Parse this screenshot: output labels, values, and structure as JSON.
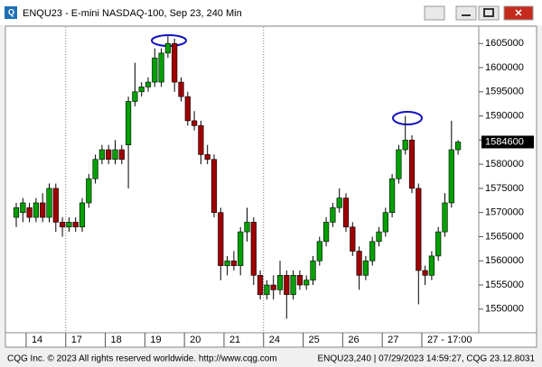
{
  "window": {
    "title": "ENQU23 - E-mini NASDAQ-100, Sep 23, 240 Min",
    "footer_left": "CQG Inc. © 2023 All rights reserved worldwide. http://www.cqg.com",
    "footer_right": "ENQU23,240 | 07/29/2023 14:59:27, CQG 23.12.8031"
  },
  "chart_data": {
    "type": "candlestick",
    "categories": [
      null,
      null,
      "14",
      null,
      null,
      null,
      null,
      null,
      "17",
      null,
      null,
      null,
      null,
      null,
      "18",
      null,
      null,
      null,
      null,
      null,
      "19",
      null,
      null,
      null,
      null,
      null,
      "20",
      null,
      null,
      null,
      null,
      null,
      "21",
      null,
      null,
      null,
      null,
      null,
      "24",
      null,
      null,
      null,
      null,
      null,
      "25",
      null,
      null,
      null,
      null,
      null,
      "26",
      null,
      null,
      null,
      null,
      null,
      "27",
      null,
      null,
      null,
      null,
      null,
      "27 - 17:00",
      null,
      null,
      null,
      null,
      null
    ],
    "open": [
      1569000,
      1570000,
      1571000,
      1569000,
      1572000,
      1569000,
      1575000,
      1568000,
      1567000,
      1568000,
      1567000,
      1572000,
      1577000,
      1581000,
      1583000,
      1581000,
      1583000,
      1584000,
      1593000,
      1595000,
      1596000,
      1597000,
      1597000,
      1603000,
      1605000,
      1597000,
      1594000,
      1589000,
      1588000,
      1582000,
      1581000,
      1570000,
      1559000,
      1560000,
      1559000,
      1566000,
      1568000,
      1557000,
      1553000,
      1555000,
      1554000,
      1557000,
      1553000,
      1557000,
      1555000,
      1556000,
      1560000,
      1564000,
      1568000,
      1571000,
      1573000,
      1567000,
      1562000,
      1557000,
      1560000,
      1564000,
      1566000,
      1570000,
      1577000,
      1583000,
      1585000,
      1575000,
      1558000,
      1557000,
      1561000,
      1566000,
      1572000,
      1583000
    ],
    "high": [
      1572000,
      1573000,
      1572000,
      1573000,
      1574000,
      1576000,
      1576000,
      1569000,
      1569000,
      1569000,
      1573000,
      1578000,
      1582000,
      1584000,
      1584000,
      1585000,
      1584000,
      1594000,
      1601000,
      1597000,
      1598000,
      1604000,
      1604000,
      1606500,
      1606000,
      1598000,
      1595000,
      1591000,
      1589000,
      1584000,
      1582000,
      1571000,
      1561000,
      1562000,
      1567000,
      1571000,
      1569000,
      1558000,
      1556000,
      1557000,
      1560000,
      1558000,
      1558000,
      1558000,
      1557000,
      1561000,
      1565000,
      1569000,
      1572000,
      1575000,
      1574000,
      1568000,
      1563000,
      1561000,
      1565000,
      1567000,
      1571000,
      1578000,
      1584000,
      1590000,
      1586000,
      1576000,
      1559000,
      1562000,
      1567000,
      1574000,
      1589000,
      1585000
    ],
    "low": [
      1567000,
      1568000,
      1568000,
      1568000,
      1568000,
      1568000,
      1566000,
      1565000,
      1566000,
      1566000,
      1566000,
      1571000,
      1576000,
      1580000,
      1580000,
      1580000,
      1580000,
      1575000,
      1592000,
      1594000,
      1595000,
      1596000,
      1596000,
      1602000,
      1595000,
      1593000,
      1588000,
      1587000,
      1580000,
      1580000,
      1569000,
      1556000,
      1557000,
      1558000,
      1557000,
      1564000,
      1555000,
      1552000,
      1552000,
      1552000,
      1553000,
      1548000,
      1552000,
      1554000,
      1554000,
      1555000,
      1559000,
      1563000,
      1567000,
      1570000,
      1566000,
      1561000,
      1554000,
      1556000,
      1559000,
      1563000,
      1565000,
      1569000,
      1576000,
      1582000,
      1574000,
      1551000,
      1555000,
      1556000,
      1560000,
      1565000,
      1571000,
      1582000
    ],
    "close": [
      1571000,
      1572000,
      1569000,
      1572000,
      1569000,
      1575000,
      1568000,
      1567000,
      1568000,
      1567000,
      1572000,
      1577000,
      1581000,
      1583000,
      1581000,
      1583000,
      1581000,
      1593000,
      1595000,
      1596000,
      1597000,
      1602000,
      1603000,
      1605000,
      1597000,
      1594000,
      1589000,
      1588000,
      1582000,
      1581000,
      1570000,
      1559000,
      1560000,
      1559000,
      1566000,
      1568000,
      1557000,
      1553000,
      1555000,
      1554000,
      1557000,
      1553000,
      1557000,
      1555000,
      1556000,
      1560000,
      1564000,
      1568000,
      1571000,
      1573000,
      1567000,
      1562000,
      1557000,
      1560000,
      1564000,
      1566000,
      1570000,
      1577000,
      1583000,
      1585000,
      1575000,
      1558000,
      1557000,
      1561000,
      1566000,
      1572000,
      1583000,
      1584600
    ],
    "up_color": "#00a000",
    "down_color": "#a00000",
    "last_price": 1584600,
    "ylim": [
      1545300,
      1608400
    ],
    "yticks": [
      1550000,
      1555000,
      1560000,
      1565000,
      1570000,
      1575000,
      1580000,
      1585000,
      1590000,
      1595000,
      1600000,
      1605000
    ]
  }
}
